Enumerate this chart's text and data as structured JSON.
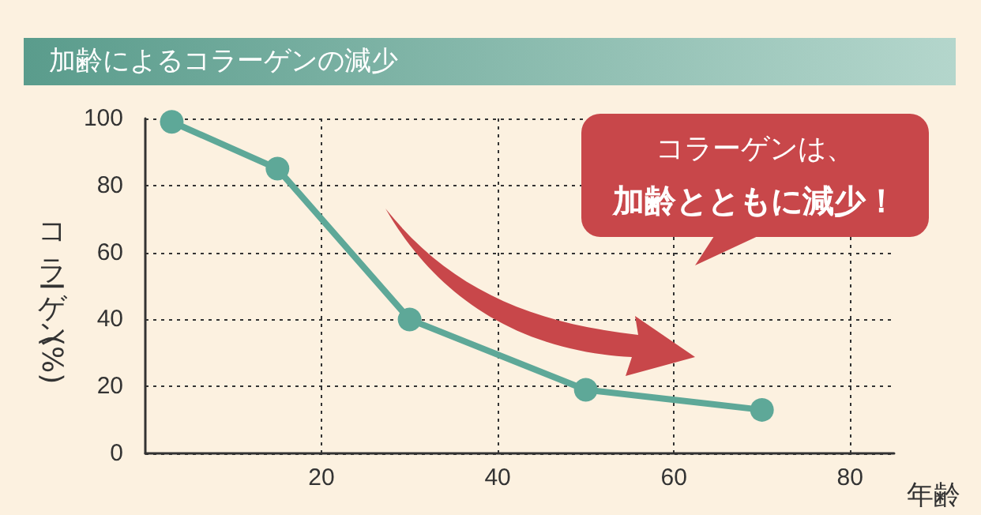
{
  "chart_data": {
    "type": "line",
    "title": "加齢によるコラーゲンの減少",
    "xlabel": "年齢",
    "ylabel": "コラーゲン(%)",
    "x": [
      3,
      15,
      30,
      50,
      70
    ],
    "series": [
      {
        "color": "#5ea898",
        "values": [
          99,
          85,
          40,
          19,
          13
        ]
      }
    ],
    "xlim": [
      0,
      85
    ],
    "xticks": [
      20,
      40,
      60,
      80
    ],
    "ylim": [
      0,
      100
    ],
    "yticks": [
      0,
      20,
      40,
      60,
      80,
      100
    ],
    "grid": true,
    "marker": "circle",
    "line_style": "solid",
    "annotations": [
      "コラーゲンは、",
      "加齢とともに減少！"
    ]
  }
}
